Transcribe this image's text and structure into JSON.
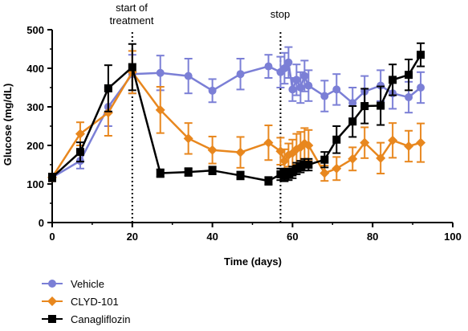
{
  "chart_data": {
    "type": "line",
    "xlabel": "Time (days)",
    "ylabel": "Glucose (mg/dL)",
    "xlim": [
      0,
      100
    ],
    "ylim": [
      0,
      500
    ],
    "x_ticks": [
      "0",
      "20",
      "40",
      "60",
      "80",
      "100"
    ],
    "y_ticks": [
      "0",
      "100",
      "200",
      "300",
      "400",
      "500"
    ],
    "grid": false,
    "legend_position": "bottom-left",
    "annotations": [
      {
        "label_lines": [
          "start of",
          "treatment"
        ],
        "x": 20
      },
      {
        "label_lines": [
          "stop"
        ],
        "x": 57
      }
    ],
    "series": [
      {
        "name": "Vehicle",
        "color": "#7b7fd6",
        "marker": "circle",
        "x": [
          0,
          7,
          14,
          20,
          27,
          34,
          40,
          47,
          54,
          57,
          58,
          59,
          60,
          61,
          62,
          63,
          64,
          68,
          71,
          75,
          78,
          82,
          85,
          89,
          92
        ],
        "y": [
          117,
          160,
          300,
          385,
          388,
          380,
          342,
          385,
          405,
          390,
          400,
          415,
          345,
          370,
          350,
          380,
          355,
          328,
          345,
          310,
          340,
          355,
          335,
          325,
          350
        ],
        "err": [
          10,
          20,
          50,
          50,
          45,
          45,
          30,
          40,
          30,
          40,
          40,
          40,
          30,
          40,
          40,
          40,
          40,
          40,
          40,
          40,
          40,
          40,
          40,
          40,
          40
        ]
      },
      {
        "name": "CLYD-101",
        "color": "#e8871e",
        "marker": "diamond",
        "x": [
          0,
          7,
          14,
          20,
          27,
          34,
          40,
          47,
          54,
          57,
          58,
          59,
          60,
          61,
          62,
          63,
          64,
          68,
          71,
          75,
          78,
          82,
          85,
          89,
          92
        ],
        "y": [
          117,
          230,
          285,
          390,
          292,
          218,
          188,
          182,
          207,
          185,
          160,
          175,
          180,
          190,
          195,
          205,
          200,
          128,
          140,
          165,
          207,
          167,
          213,
          198,
          207
        ],
        "err": [
          10,
          30,
          60,
          55,
          60,
          40,
          35,
          40,
          45,
          35,
          30,
          30,
          35,
          40,
          40,
          40,
          40,
          20,
          30,
          30,
          40,
          40,
          45,
          40,
          50
        ]
      },
      {
        "name": "Canagliflozin",
        "color": "#000000",
        "marker": "square",
        "x": [
          0,
          7,
          14,
          20,
          27,
          34,
          40,
          47,
          54,
          57,
          58,
          59,
          60,
          61,
          62,
          63,
          64,
          68,
          71,
          75,
          78,
          82,
          85,
          89,
          92
        ],
        "y": [
          117,
          183,
          348,
          403,
          128,
          131,
          135,
          122,
          108,
          125,
          122,
          125,
          130,
          140,
          145,
          150,
          150,
          163,
          215,
          262,
          302,
          303,
          370,
          383,
          435
        ],
        "err": [
          10,
          25,
          60,
          60,
          10,
          10,
          10,
          10,
          10,
          15,
          15,
          15,
          15,
          15,
          15,
          15,
          15,
          20,
          35,
          40,
          45,
          50,
          40,
          40,
          30
        ]
      }
    ]
  }
}
